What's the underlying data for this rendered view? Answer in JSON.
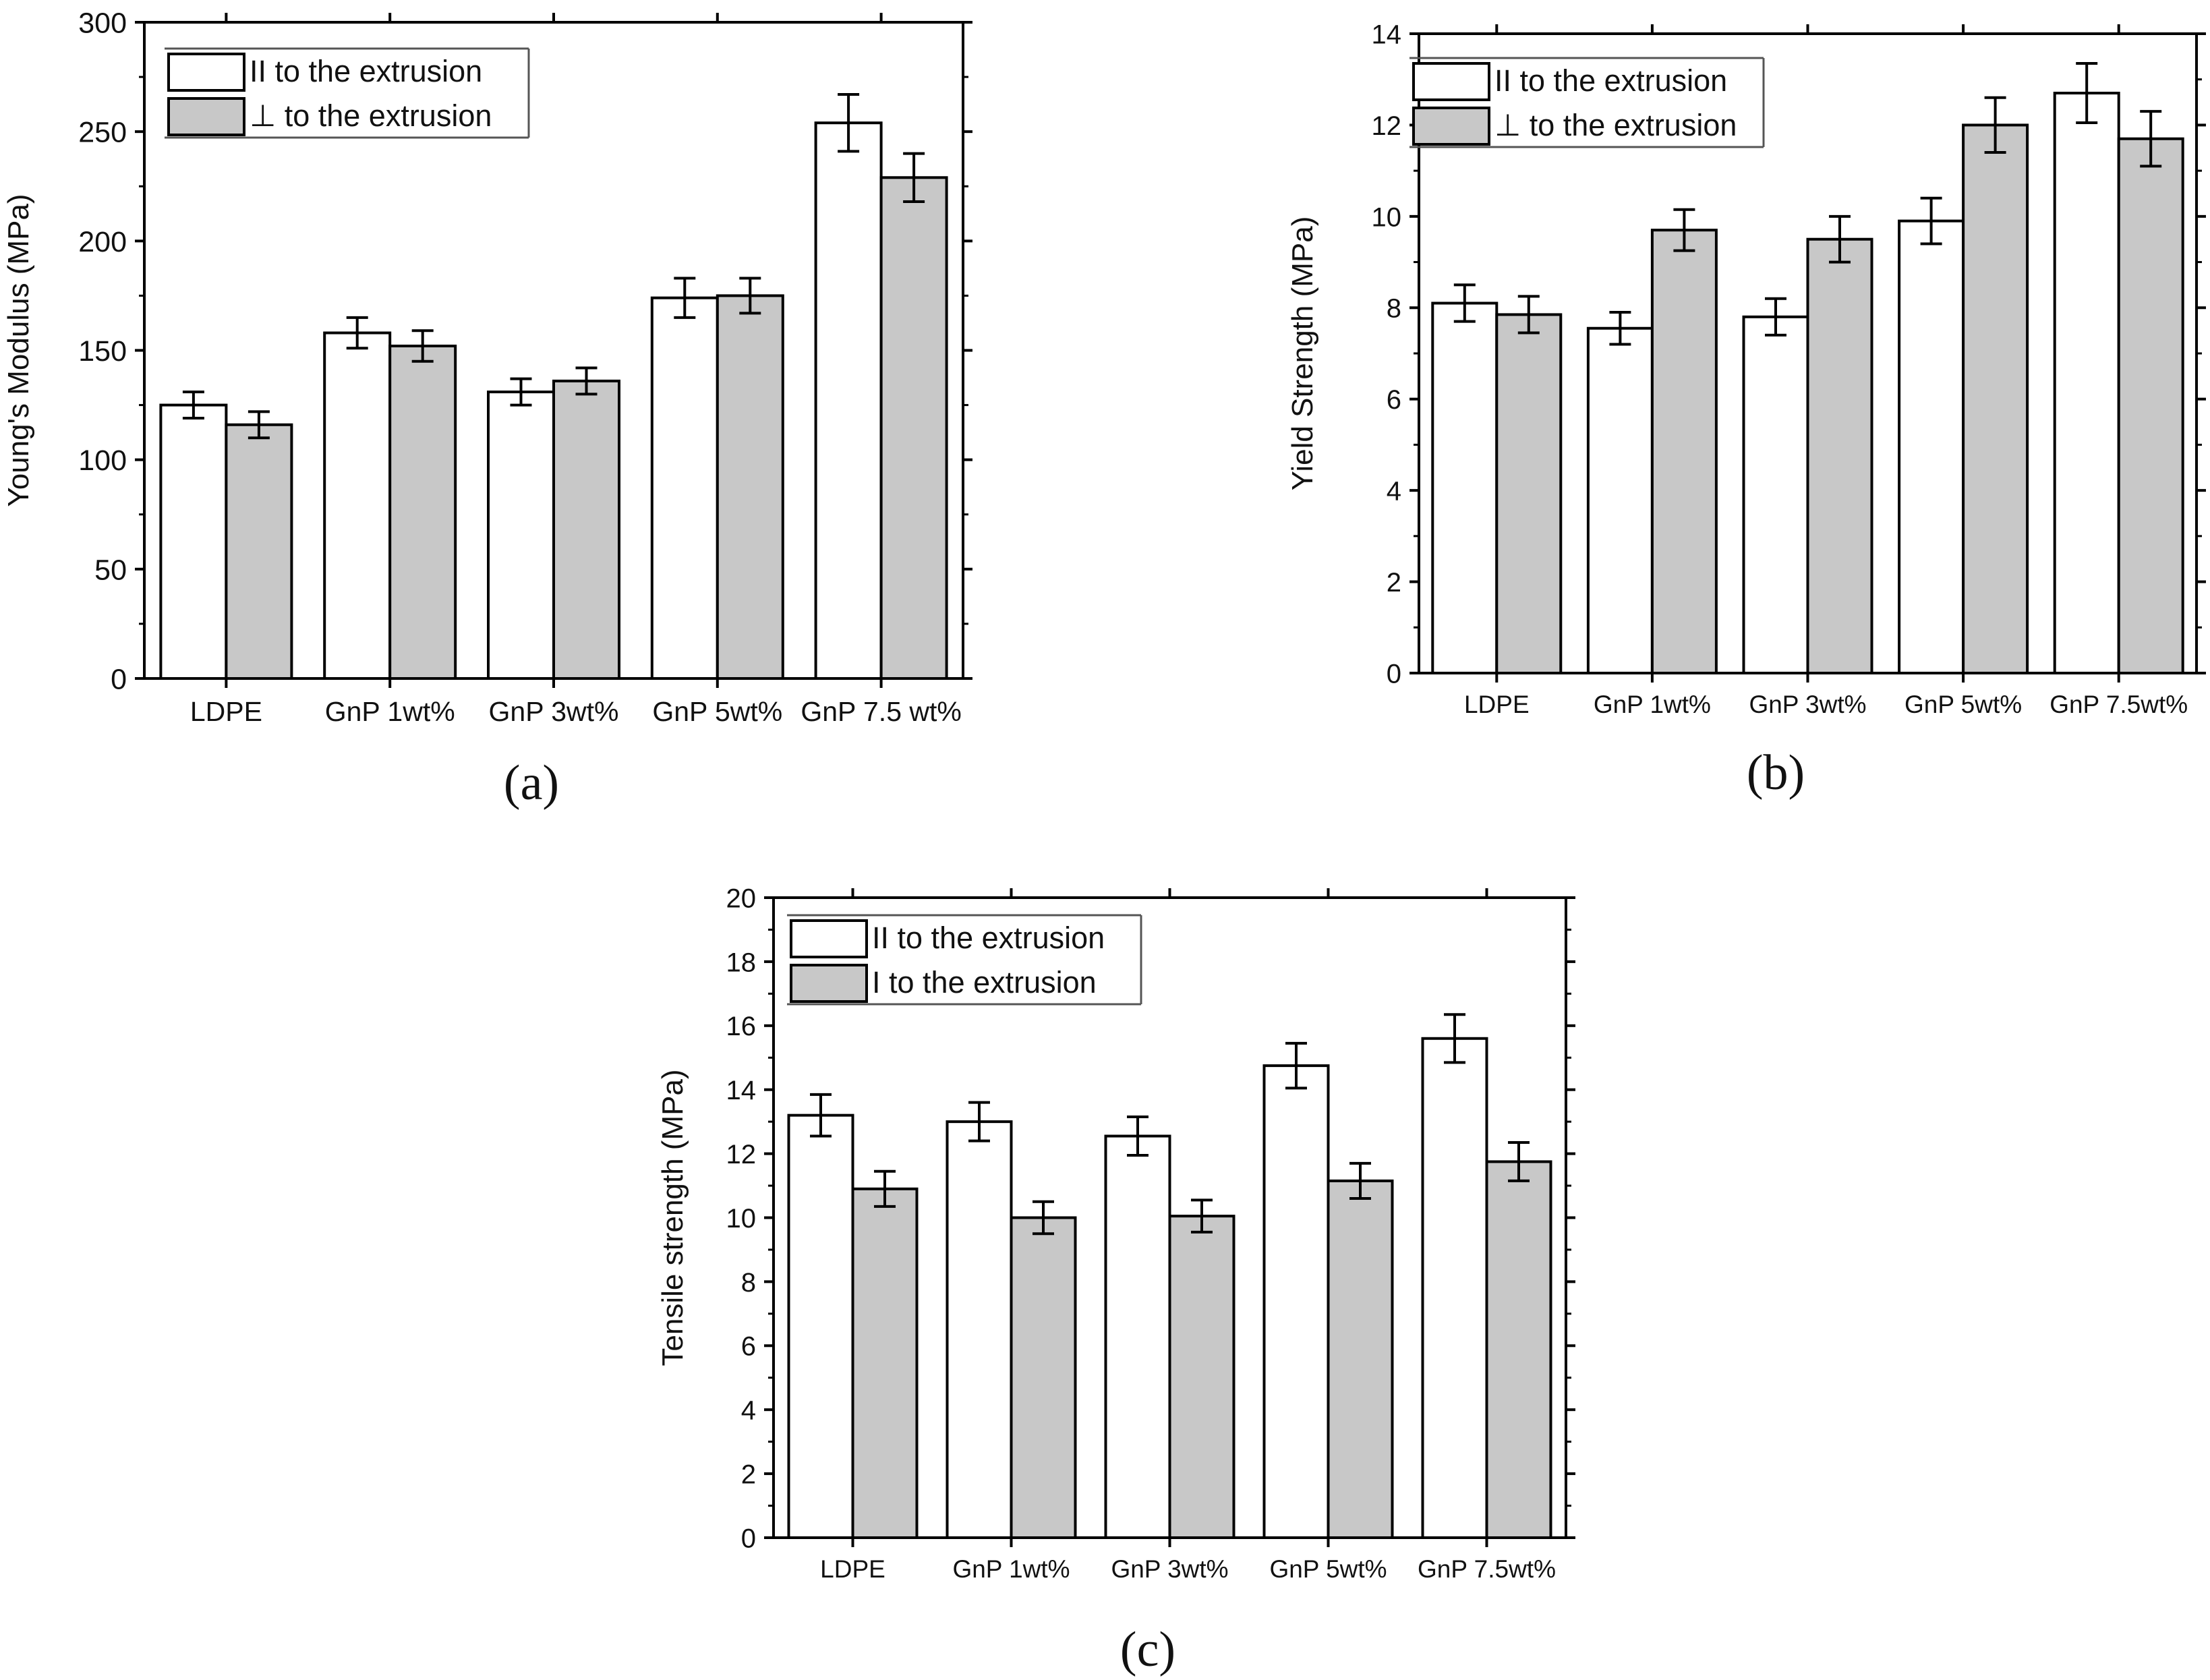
{
  "figure": {
    "panel_labels": [
      "(a)",
      "(b)",
      "(c)"
    ],
    "colors": {
      "series_parallel": "#ffffff",
      "series_perpendicular": "#c8c8c8",
      "axis": "#000000"
    }
  },
  "chart_data": [
    {
      "type": "bar",
      "panel": "a",
      "title": "",
      "xlabel": "",
      "ylabel": "Young's Modulus (MPa)",
      "ylim": [
        0,
        300
      ],
      "yticks": [
        0,
        50,
        100,
        150,
        200,
        250,
        300
      ],
      "grid": false,
      "legend_position": "top-left",
      "categories": [
        "LDPE",
        "GnP 1wt%",
        "GnP 3wt%",
        "GnP 5wt%",
        "GnP 7.5 wt%"
      ],
      "series": [
        {
          "name": "II to the extrusion",
          "values": [
            125,
            158,
            131,
            174,
            254
          ],
          "errors": [
            6,
            7,
            6,
            9,
            13
          ]
        },
        {
          "name": "⊥ to the extrusion",
          "values": [
            116,
            152,
            136,
            175,
            229
          ],
          "errors": [
            6,
            7,
            6,
            8,
            11
          ]
        }
      ]
    },
    {
      "type": "bar",
      "panel": "b",
      "title": "",
      "xlabel": "",
      "ylabel": "Yield Strength (MPa)",
      "ylim": [
        0,
        14
      ],
      "yticks": [
        0,
        2,
        4,
        6,
        8,
        10,
        12,
        14
      ],
      "grid": false,
      "legend_position": "top-left",
      "categories": [
        "LDPE",
        "GnP 1wt%",
        "GnP 3wt%",
        "GnP 5wt%",
        "GnP 7.5wt%"
      ],
      "series": [
        {
          "name": "II to the extrusion",
          "values": [
            8.1,
            7.55,
            7.8,
            9.9,
            12.7
          ],
          "errors": [
            0.4,
            0.35,
            0.4,
            0.5,
            0.65
          ]
        },
        {
          "name": "⊥ to the extrusion",
          "values": [
            7.85,
            9.7,
            9.5,
            12.0,
            11.7
          ],
          "errors": [
            0.4,
            0.45,
            0.5,
            0.6,
            0.6
          ]
        }
      ]
    },
    {
      "type": "bar",
      "panel": "c",
      "title": "",
      "xlabel": "",
      "ylabel": "Tensile strength (MPa)",
      "ylim": [
        0,
        20
      ],
      "yticks": [
        0,
        2,
        4,
        6,
        8,
        10,
        12,
        14,
        16,
        18,
        20
      ],
      "grid": false,
      "legend_position": "top-left",
      "categories": [
        "LDPE",
        "GnP 1wt%",
        "GnP 3wt%",
        "GnP 5wt%",
        "GnP 7.5wt%"
      ],
      "series": [
        {
          "name": "II to the extrusion",
          "values": [
            13.2,
            13.0,
            12.55,
            14.75,
            15.6
          ],
          "errors": [
            0.65,
            0.6,
            0.6,
            0.7,
            0.75
          ]
        },
        {
          "name": "I  to the extrusion",
          "values": [
            10.9,
            10.0,
            10.05,
            11.15,
            11.75
          ],
          "errors": [
            0.55,
            0.5,
            0.5,
            0.55,
            0.6
          ]
        }
      ]
    }
  ]
}
